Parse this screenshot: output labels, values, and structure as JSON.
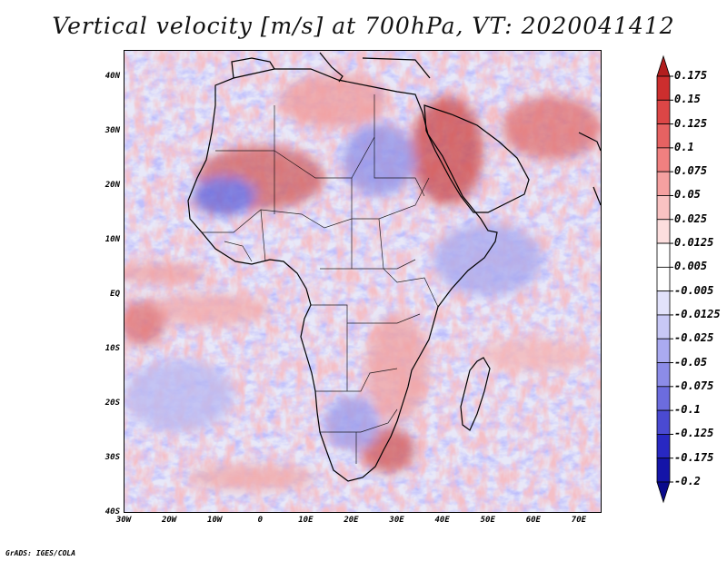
{
  "title": "Vertical velocity [m/s] at 700hPa, VT: 2020041412",
  "credit": "GrADS: IGES/COLA",
  "map": {
    "lon_range": [
      -30,
      75
    ],
    "lat_range": [
      -40,
      45
    ],
    "lat_labels": [
      "40N",
      "30N",
      "20N",
      "10N",
      "EQ",
      "10S",
      "20S",
      "30S",
      "40S"
    ],
    "lat_values": [
      40,
      30,
      20,
      10,
      0,
      -10,
      -20,
      -30,
      -40
    ],
    "lon_labels": [
      "30W",
      "20W",
      "10W",
      "0",
      "10E",
      "20E",
      "30E",
      "40E",
      "50E",
      "60E",
      "70E"
    ],
    "lon_values": [
      -30,
      -20,
      -10,
      0,
      10,
      20,
      30,
      40,
      50,
      60,
      70
    ],
    "background_color": "#e6e6f8",
    "coastline_color": "#000000"
  },
  "colorbar": {
    "labels": [
      "0.175",
      "0.15",
      "0.125",
      "0.1",
      "0.075",
      "0.05",
      "0.025",
      "0.0125",
      "0.005",
      "-0.005",
      "-0.0125",
      "-0.025",
      "-0.05",
      "-0.075",
      "-0.1",
      "-0.125",
      "-0.175",
      "-0.2"
    ],
    "colors": [
      "#b21e1e",
      "#cc2e2e",
      "#dc4646",
      "#e66262",
      "#f08080",
      "#f5a0a0",
      "#f9c2c2",
      "#fcdede",
      "#ffffff",
      "#ffffff",
      "#e2e2fb",
      "#c8c8f6",
      "#aaaaf0",
      "#8c8ce8",
      "#6c6cde",
      "#4a4ad2",
      "#2828c2",
      "#1414a8",
      "#0a0a8c"
    ]
  }
}
